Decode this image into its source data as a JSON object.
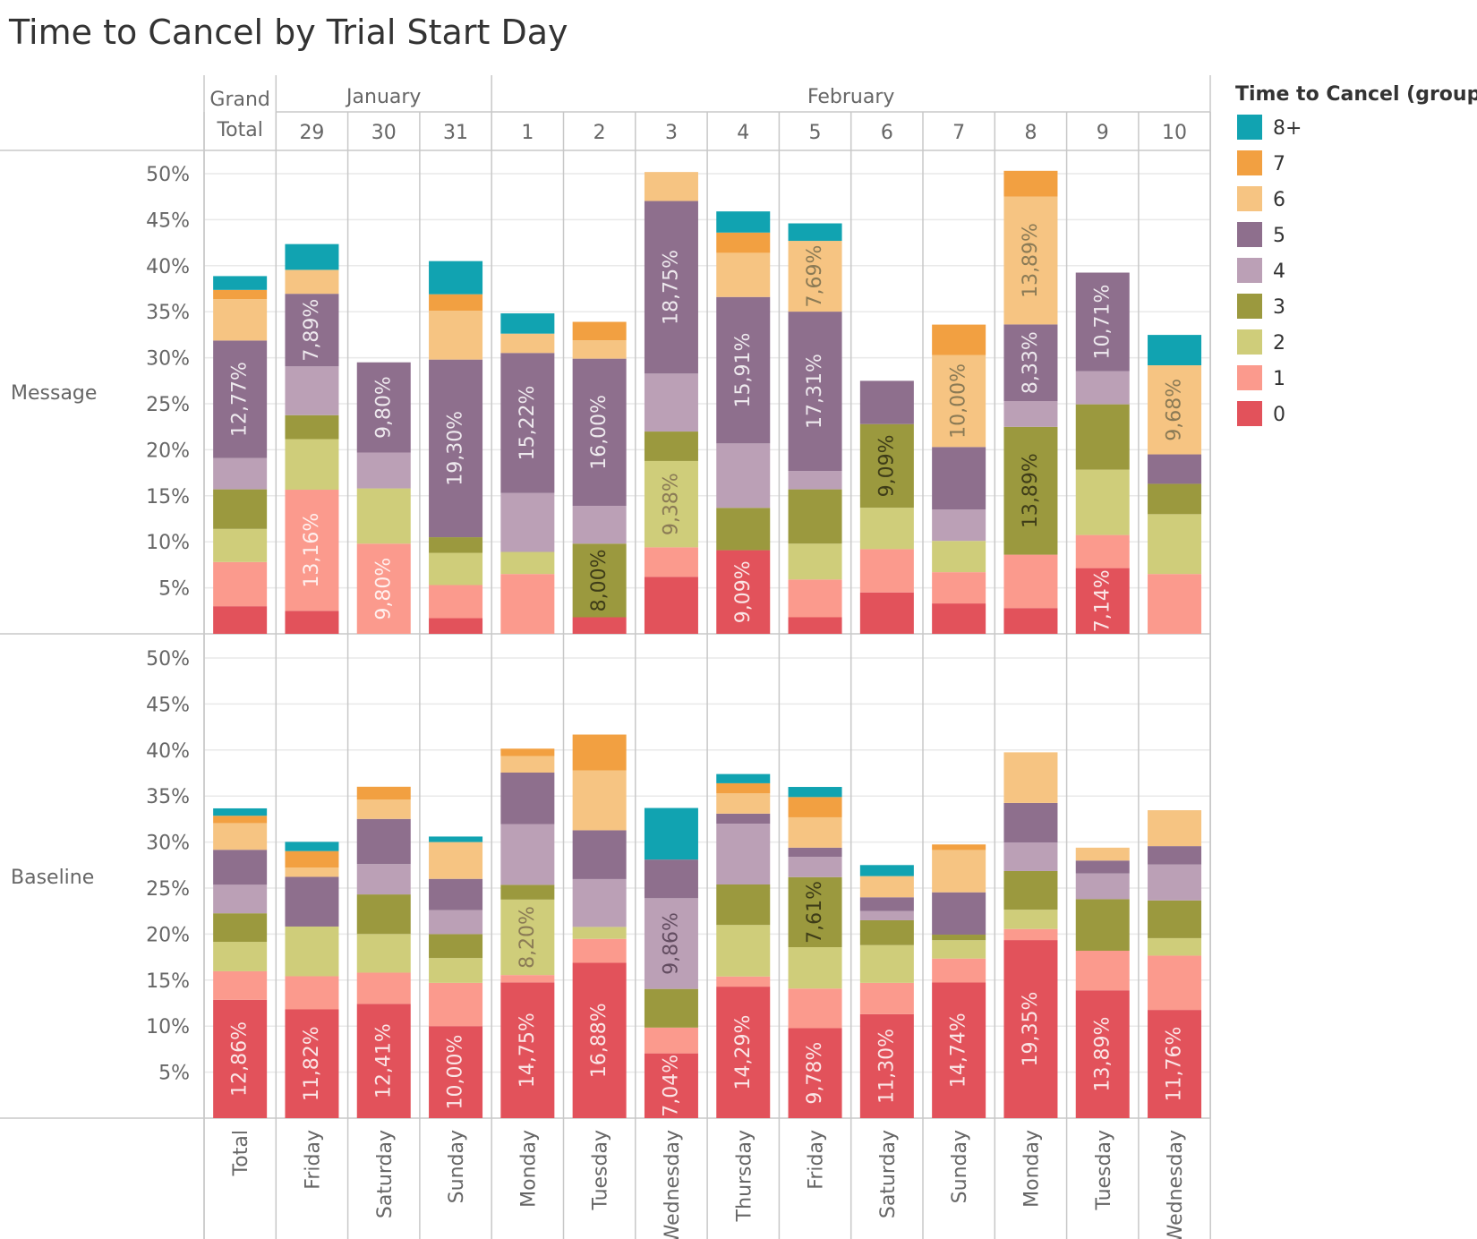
{
  "title": "Time to Cancel by Trial Start Day",
  "legend": {
    "title": "Time to Cancel (group)",
    "items": [
      {
        "label": "8+",
        "color": "#11A3B1"
      },
      {
        "label": "7",
        "color": "#F2A041"
      },
      {
        "label": "6",
        "color": "#F6C482"
      },
      {
        "label": "5",
        "color": "#8E6F8D"
      },
      {
        "label": "4",
        "color": "#BBA0B6"
      },
      {
        "label": "3",
        "color": "#9B993E"
      },
      {
        "label": "2",
        "color": "#CFCD7A"
      },
      {
        "label": "1",
        "color": "#FB9A8D"
      },
      {
        "label": "0",
        "color": "#E2525B"
      }
    ]
  },
  "chart_data": {
    "type": "bar",
    "stacked": true,
    "header": {
      "grand_total": "Grand\nTotal",
      "months": [
        {
          "label": "January",
          "span": [
            1,
            3
          ]
        },
        {
          "label": "February",
          "span": [
            4,
            13
          ]
        }
      ]
    },
    "columns": [
      {
        "day": "",
        "weekday": "Total"
      },
      {
        "day": "29",
        "weekday": "Friday"
      },
      {
        "day": "30",
        "weekday": "Saturday"
      },
      {
        "day": "31",
        "weekday": "Sunday"
      },
      {
        "day": "1",
        "weekday": "Monday"
      },
      {
        "day": "2",
        "weekday": "Tuesday"
      },
      {
        "day": "3",
        "weekday": "Wednesday"
      },
      {
        "day": "4",
        "weekday": "Thursday"
      },
      {
        "day": "5",
        "weekday": "Friday"
      },
      {
        "day": "6",
        "weekday": "Saturday"
      },
      {
        "day": "7",
        "weekday": "Sunday"
      },
      {
        "day": "8",
        "weekday": "Monday"
      },
      {
        "day": "9",
        "weekday": "Tuesday"
      },
      {
        "day": "10",
        "weekday": "Wednesday"
      }
    ],
    "segment_order": [
      "0",
      "1",
      "2",
      "3",
      "4",
      "5",
      "6",
      "7",
      "8+"
    ],
    "y_ticks": [
      "5%",
      "10%",
      "15%",
      "20%",
      "25%",
      "30%",
      "35%",
      "40%",
      "45%",
      "50%"
    ],
    "ylim": [
      0,
      52
    ],
    "panels": [
      {
        "name": "Message",
        "stacks": [
          [
            3.0,
            4.8,
            3.6,
            4.3,
            3.4,
            12.77,
            4.5,
            1.0,
            1.5
          ],
          [
            2.5,
            13.16,
            5.5,
            2.6,
            5.3,
            7.89,
            2.6,
            0,
            2.8
          ],
          [
            0,
            9.8,
            6.0,
            0,
            3.9,
            9.8,
            0,
            0,
            0
          ],
          [
            1.7,
            3.6,
            3.5,
            1.7,
            0,
            19.3,
            5.3,
            1.8,
            3.6
          ],
          [
            0,
            6.5,
            2.4,
            0,
            6.4,
            15.22,
            2.1,
            0,
            2.2
          ],
          [
            1.8,
            0,
            0,
            8.0,
            4.1,
            16.0,
            2.0,
            2.0,
            0
          ],
          [
            6.2,
            3.2,
            9.38,
            3.2,
            6.3,
            18.75,
            3.15,
            0,
            0
          ],
          [
            9.09,
            0,
            0,
            4.6,
            7.0,
            15.91,
            4.8,
            2.2,
            2.3
          ],
          [
            1.8,
            4.1,
            3.9,
            5.9,
            2.0,
            17.31,
            7.69,
            0,
            1.9
          ],
          [
            4.5,
            4.7,
            4.5,
            9.09,
            0,
            4.7,
            0,
            0,
            0
          ],
          [
            3.3,
            3.4,
            3.4,
            0,
            3.4,
            6.8,
            10.0,
            3.3,
            0
          ],
          [
            2.8,
            5.8,
            0,
            13.89,
            2.8,
            8.33,
            13.89,
            2.8,
            0
          ],
          [
            7.14,
            3.6,
            7.1,
            7.1,
            3.6,
            10.71,
            0,
            0,
            0
          ],
          [
            0,
            6.5,
            6.5,
            3.3,
            0,
            3.2,
            9.68,
            0,
            3.3
          ]
        ],
        "labels": [
          {
            "col": 0,
            "seg": 5,
            "text": "12,77%"
          },
          {
            "col": 1,
            "seg": 1,
            "text": "13,16%"
          },
          {
            "col": 1,
            "seg": 5,
            "text": "7,89%"
          },
          {
            "col": 2,
            "seg": 1,
            "text": "9,80%"
          },
          {
            "col": 2,
            "seg": 5,
            "text": "9,80%"
          },
          {
            "col": 3,
            "seg": 5,
            "text": "19,30%"
          },
          {
            "col": 4,
            "seg": 5,
            "text": "15,22%"
          },
          {
            "col": 5,
            "seg": 3,
            "text": "8,00%"
          },
          {
            "col": 5,
            "seg": 5,
            "text": "16,00%"
          },
          {
            "col": 6,
            "seg": 2,
            "text": "9,38%"
          },
          {
            "col": 6,
            "seg": 5,
            "text": "18,75%"
          },
          {
            "col": 7,
            "seg": 0,
            "text": "9,09%"
          },
          {
            "col": 7,
            "seg": 5,
            "text": "15,91%"
          },
          {
            "col": 8,
            "seg": 5,
            "text": "17,31%"
          },
          {
            "col": 8,
            "seg": 6,
            "text": "7,69%"
          },
          {
            "col": 9,
            "seg": 3,
            "text": "9,09%"
          },
          {
            "col": 10,
            "seg": 6,
            "text": "10,00%"
          },
          {
            "col": 11,
            "seg": 3,
            "text": "13,89%"
          },
          {
            "col": 11,
            "seg": 5,
            "text": "8,33%"
          },
          {
            "col": 11,
            "seg": 6,
            "text": "13,89%"
          },
          {
            "col": 12,
            "seg": 0,
            "text": "7,14%"
          },
          {
            "col": 12,
            "seg": 5,
            "text": "10,71%"
          },
          {
            "col": 13,
            "seg": 6,
            "text": "9,68%"
          }
        ]
      },
      {
        "name": "Baseline",
        "stacks": [
          [
            12.86,
            3.1,
            3.2,
            3.1,
            3.1,
            3.8,
            2.9,
            0.8,
            0.8
          ],
          [
            11.82,
            3.6,
            5.4,
            0,
            0,
            5.4,
            1.0,
            1.8,
            1.0
          ],
          [
            12.41,
            3.4,
            4.2,
            4.3,
            3.3,
            4.9,
            2.1,
            1.4,
            0
          ],
          [
            10.0,
            4.7,
            2.7,
            2.6,
            2.6,
            3.4,
            4.0,
            0,
            0.6
          ],
          [
            14.75,
            0.8,
            8.2,
            1.6,
            6.6,
            5.6,
            1.8,
            0.8,
            0
          ],
          [
            16.88,
            2.6,
            1.3,
            0,
            5.2,
            5.3,
            6.5,
            3.9,
            0
          ],
          [
            7.04,
            2.8,
            0,
            4.2,
            9.86,
            4.2,
            0,
            0,
            5.6
          ],
          [
            14.29,
            1.1,
            5.6,
            4.4,
            6.6,
            1.1,
            2.2,
            1.1,
            1.0
          ],
          [
            9.78,
            4.3,
            4.5,
            7.61,
            2.2,
            1.0,
            3.3,
            2.2,
            1.1
          ],
          [
            11.3,
            3.4,
            4.1,
            2.7,
            1.0,
            1.5,
            2.3,
            0,
            1.2
          ],
          [
            14.74,
            2.6,
            2.0,
            0.6,
            0,
            4.6,
            4.6,
            0.6,
            0
          ],
          [
            19.35,
            1.2,
            2.1,
            4.2,
            3.1,
            4.3,
            5.5,
            0,
            0
          ],
          [
            13.89,
            4.3,
            0,
            5.6,
            2.8,
            1.4,
            1.4,
            0,
            0
          ],
          [
            11.76,
            5.9,
            1.9,
            4.1,
            3.9,
            2.0,
            3.9,
            0,
            0
          ]
        ],
        "labels": [
          {
            "col": 0,
            "seg": 0,
            "text": "12,86%"
          },
          {
            "col": 1,
            "seg": 0,
            "text": "11,82%"
          },
          {
            "col": 2,
            "seg": 0,
            "text": "12,41%"
          },
          {
            "col": 3,
            "seg": 0,
            "text": "10,00%"
          },
          {
            "col": 4,
            "seg": 0,
            "text": "14,75%"
          },
          {
            "col": 4,
            "seg": 2,
            "text": "8,20%"
          },
          {
            "col": 5,
            "seg": 0,
            "text": "16,88%"
          },
          {
            "col": 6,
            "seg": 0,
            "text": "7,04%"
          },
          {
            "col": 6,
            "seg": 4,
            "text": "9,86%"
          },
          {
            "col": 7,
            "seg": 0,
            "text": "14,29%"
          },
          {
            "col": 8,
            "seg": 0,
            "text": "9,78%"
          },
          {
            "col": 8,
            "seg": 3,
            "text": "7,61%"
          },
          {
            "col": 9,
            "seg": 0,
            "text": "11,30%"
          },
          {
            "col": 10,
            "seg": 0,
            "text": "14,74%"
          },
          {
            "col": 11,
            "seg": 0,
            "text": "19,35%"
          },
          {
            "col": 12,
            "seg": 0,
            "text": "13,89%"
          },
          {
            "col": 13,
            "seg": 0,
            "text": "11,76%"
          }
        ]
      }
    ]
  }
}
